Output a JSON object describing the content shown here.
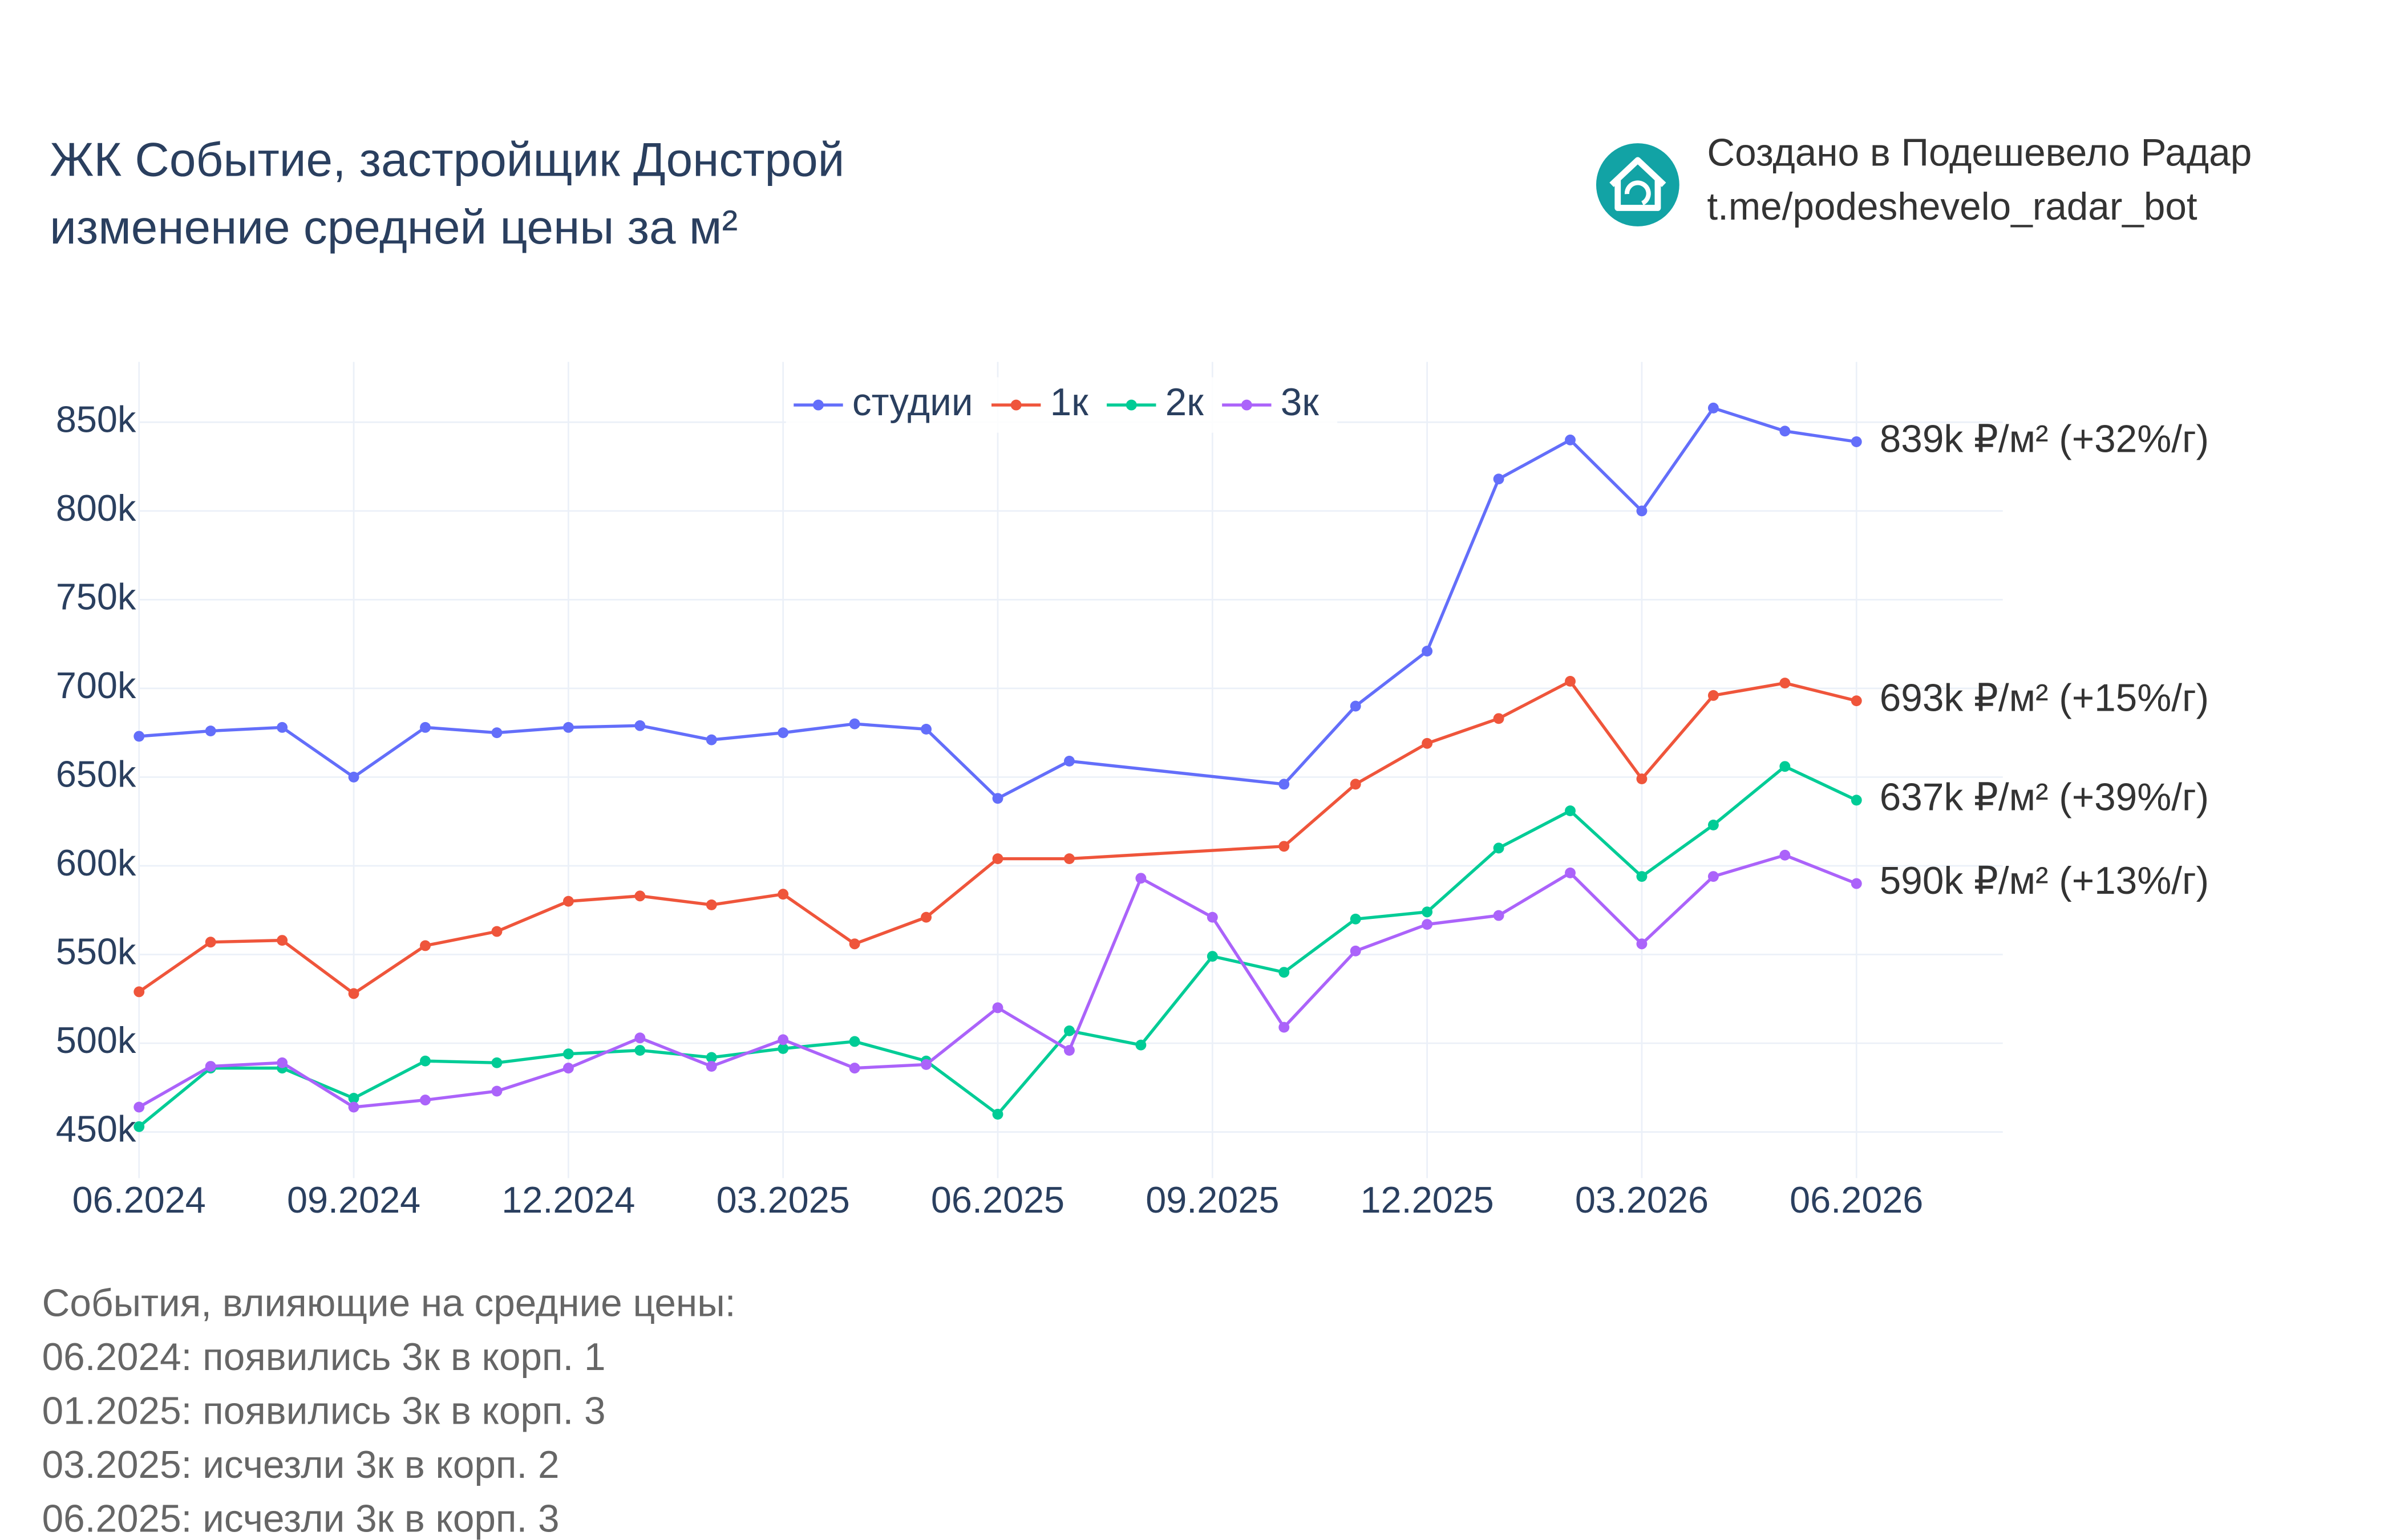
{
  "chart_data": {
    "type": "line",
    "title": "ЖК Событие, застройщик Донстрой",
    "subtitle": "изменение средней цены за м²",
    "credit": [
      "Создано в Подешевело Радар",
      "t.me/podeshevelo_radar_bot"
    ],
    "x": [
      "06.2024",
      "07.2024",
      "08.2024",
      "09.2024",
      "10.2024",
      "11.2024",
      "12.2024",
      "01.2025",
      "02.2025",
      "03.2025",
      "04.2025",
      "05.2025",
      "06.2025",
      "07.2025",
      "08.2025",
      "09.2025",
      "10.2025",
      "11.2025",
      "12.2025",
      "01.2026",
      "02.2026",
      "03.2026",
      "04.2026",
      "05.2026",
      "06.2026"
    ],
    "xticks": [
      "06.2024",
      "09.2024",
      "12.2024",
      "03.2025",
      "06.2025",
      "09.2025",
      "12.2025",
      "03.2026",
      "06.2026"
    ],
    "ylim": [
      424000,
      884000
    ],
    "yticks": [
      {
        "value": 450000,
        "label": "450k"
      },
      {
        "value": 500000,
        "label": "500k"
      },
      {
        "value": 550000,
        "label": "550k"
      },
      {
        "value": 600000,
        "label": "600k"
      },
      {
        "value": 650000,
        "label": "650k"
      },
      {
        "value": 700000,
        "label": "700k"
      },
      {
        "value": 750000,
        "label": "750k"
      },
      {
        "value": 800000,
        "label": "800k"
      },
      {
        "value": 850000,
        "label": "850k"
      }
    ],
    "grid": true,
    "connect_gaps": true,
    "legend_position": "top",
    "series": [
      {
        "name": "студии",
        "color": "#636efa",
        "end_label": "839k ₽/м² (+32%/г)",
        "values": [
          673000,
          676000,
          678000,
          650000,
          678000,
          675000,
          678000,
          679000,
          671000,
          675000,
          680000,
          677000,
          638000,
          659000,
          null,
          null,
          646000,
          690000,
          721000,
          818000,
          840000,
          800000,
          858000,
          845000,
          839000
        ]
      },
      {
        "name": "1к",
        "color": "#ef553b",
        "end_label": "693k ₽/м² (+15%/г)",
        "values": [
          529000,
          557000,
          558000,
          528000,
          555000,
          563000,
          580000,
          583000,
          578000,
          584000,
          556000,
          571000,
          604000,
          604000,
          null,
          null,
          611000,
          646000,
          669000,
          683000,
          704000,
          649000,
          696000,
          703000,
          693000
        ]
      },
      {
        "name": "2к",
        "color": "#00cc96",
        "end_label": "637k ₽/м² (+39%/г)",
        "values": [
          453000,
          486000,
          486000,
          469000,
          490000,
          489000,
          494000,
          496000,
          492000,
          497000,
          501000,
          490000,
          460000,
          507000,
          499000,
          549000,
          540000,
          570000,
          574000,
          610000,
          631000,
          594000,
          623000,
          656000,
          637000
        ]
      },
      {
        "name": "3к",
        "color": "#ab63fa",
        "end_label": "590k ₽/м² (+13%/г)",
        "values": [
          464000,
          487000,
          489000,
          464000,
          468000,
          473000,
          486000,
          503000,
          487000,
          502000,
          486000,
          488000,
          520000,
          496000,
          593000,
          571000,
          509000,
          552000,
          567000,
          572000,
          596000,
          556000,
          594000,
          606000,
          590000
        ]
      }
    ],
    "notes_title": "События, влияющие на средние цены:",
    "notes": [
      "06.2024: появились 3к в корп. 1",
      "01.2025: появились 3к в корп. 3",
      "03.2025: исчезли 3к в корп. 2",
      "06.2025: исчезли 3к в корп. 3"
    ]
  }
}
